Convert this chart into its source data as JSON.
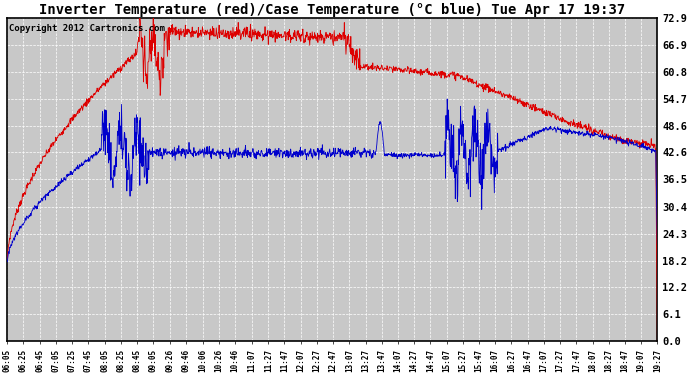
{
  "title": "Inverter Temperature (red)/Case Temperature (°C blue) Tue Apr 17 19:37",
  "copyright": "Copyright 2012 Cartronics.com",
  "ylabel_right": [
    "72.9",
    "66.9",
    "60.8",
    "54.7",
    "48.6",
    "42.6",
    "36.5",
    "30.4",
    "24.3",
    "18.2",
    "12.2",
    "6.1",
    "0.0"
  ],
  "ytick_values": [
    72.9,
    66.9,
    60.8,
    54.7,
    48.6,
    42.6,
    36.5,
    30.4,
    24.3,
    18.2,
    12.2,
    6.1,
    0.0
  ],
  "ylim": [
    0.0,
    72.9
  ],
  "xlabel_ticks": [
    "06:05",
    "06:25",
    "06:45",
    "07:05",
    "07:25",
    "07:45",
    "08:05",
    "08:25",
    "08:45",
    "09:05",
    "09:26",
    "09:46",
    "10:06",
    "10:26",
    "10:46",
    "11:07",
    "11:27",
    "11:47",
    "12:07",
    "12:27",
    "12:47",
    "13:07",
    "13:27",
    "13:47",
    "14:07",
    "14:27",
    "14:47",
    "15:07",
    "15:27",
    "15:47",
    "16:07",
    "16:27",
    "16:47",
    "17:07",
    "17:27",
    "17:47",
    "18:07",
    "18:27",
    "18:47",
    "19:07",
    "19:27"
  ],
  "red_color": "#dd0000",
  "blue_color": "#0000cc",
  "bg_color": "#ffffff",
  "plot_bg_color": "#c8c8c8",
  "grid_color": "#ffffff",
  "title_fontsize": 10,
  "copyright_fontsize": 6.5
}
